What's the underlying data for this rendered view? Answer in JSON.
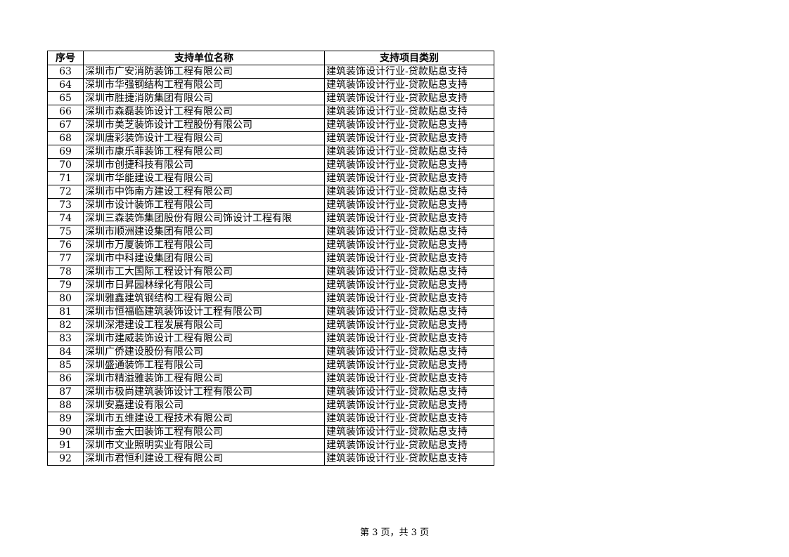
{
  "table": {
    "headers": [
      "序号",
      "支持单位名称",
      "支持项目类别"
    ],
    "rows": [
      [
        "63",
        "深圳市广安消防装饰工程有限公司",
        "建筑装饰设计行业-贷款贴息支持"
      ],
      [
        "64",
        "深圳市华强钢结构工程有限公司",
        "建筑装饰设计行业-贷款贴息支持"
      ],
      [
        "65",
        "深圳市胜捷消防集团有限公司",
        "建筑装饰设计行业-贷款贴息支持"
      ],
      [
        "66",
        "深圳市森磊装饰设计工程有限公司",
        "建筑装饰设计行业-贷款贴息支持"
      ],
      [
        "67",
        "深圳市美芝装饰设计工程股份有限公司",
        "建筑装饰设计行业-贷款贴息支持"
      ],
      [
        "68",
        "深圳唐彩装饰设计工程有限公司",
        "建筑装饰设计行业-贷款贴息支持"
      ],
      [
        "69",
        "深圳市康乐菲装饰工程有限公司",
        "建筑装饰设计行业-贷款贴息支持"
      ],
      [
        "70",
        "深圳市创捷科技有限公司",
        "建筑装饰设计行业-贷款贴息支持"
      ],
      [
        "71",
        "深圳市华能建设工程有限公司",
        "建筑装饰设计行业-贷款贴息支持"
      ],
      [
        "72",
        "深圳市中饰南方建设工程有限公司",
        "建筑装饰设计行业-贷款贴息支持"
      ],
      [
        "73",
        "深圳市设计装饰工程有限公司",
        "建筑装饰设计行业-贷款贴息支持"
      ],
      [
        "74",
        "深圳三森装饰集团股份有限公司饰设计工程有限",
        "建筑装饰设计行业-贷款贴息支持"
      ],
      [
        "75",
        "深圳市顺洲建设集团有限公司",
        "建筑装饰设计行业-贷款贴息支持"
      ],
      [
        "76",
        "深圳市万厦装饰工程有限公司",
        "建筑装饰设计行业-贷款贴息支持"
      ],
      [
        "77",
        "深圳市中科建设集团有限公司",
        "建筑装饰设计行业-贷款贴息支持"
      ],
      [
        "78",
        "深圳市工大国际工程设计有限公司",
        "建筑装饰设计行业-贷款贴息支持"
      ],
      [
        "79",
        "深圳市日昇园林绿化有限公司",
        "建筑装饰设计行业-贷款贴息支持"
      ],
      [
        "80",
        "深圳雅鑫建筑钢结构工程有限公司",
        "建筑装饰设计行业-贷款贴息支持"
      ],
      [
        "81",
        "深圳市恒福临建筑装饰设计工程有限公司",
        "建筑装饰设计行业-贷款贴息支持"
      ],
      [
        "82",
        "深圳深港建设工程发展有限公司",
        "建筑装饰设计行业-贷款贴息支持"
      ],
      [
        "83",
        "深圳市建威装饰设计工程有限公司",
        "建筑装饰设计行业-贷款贴息支持"
      ],
      [
        "84",
        "深圳广侨建设股份有限公司",
        "建筑装饰设计行业-贷款贴息支持"
      ],
      [
        "85",
        "深圳盛通装饰工程有限公司",
        "建筑装饰设计行业-贷款贴息支持"
      ],
      [
        "86",
        "深圳市精溢雅装饰工程有限公司",
        "建筑装饰设计行业-贷款贴息支持"
      ],
      [
        "87",
        "深圳市极尚建筑装饰设计工程有限公司",
        "建筑装饰设计行业-贷款贴息支持"
      ],
      [
        "88",
        "深圳安嘉建设有限公司",
        "建筑装饰设计行业-贷款贴息支持"
      ],
      [
        "89",
        "深圳市五维建设工程技术有限公司",
        "建筑装饰设计行业-贷款贴息支持"
      ],
      [
        "90",
        "深圳市金大田装饰工程有限公司",
        "建筑装饰设计行业-贷款贴息支持"
      ],
      [
        "91",
        "深圳市文业照明实业有限公司",
        "建筑装饰设计行业-贷款贴息支持"
      ],
      [
        "92",
        "深圳市君恒利建设工程有限公司",
        "建筑装饰设计行业-贷款贴息支持"
      ]
    ]
  },
  "footer": {
    "page_label": "第 3 页，共 3 页"
  }
}
